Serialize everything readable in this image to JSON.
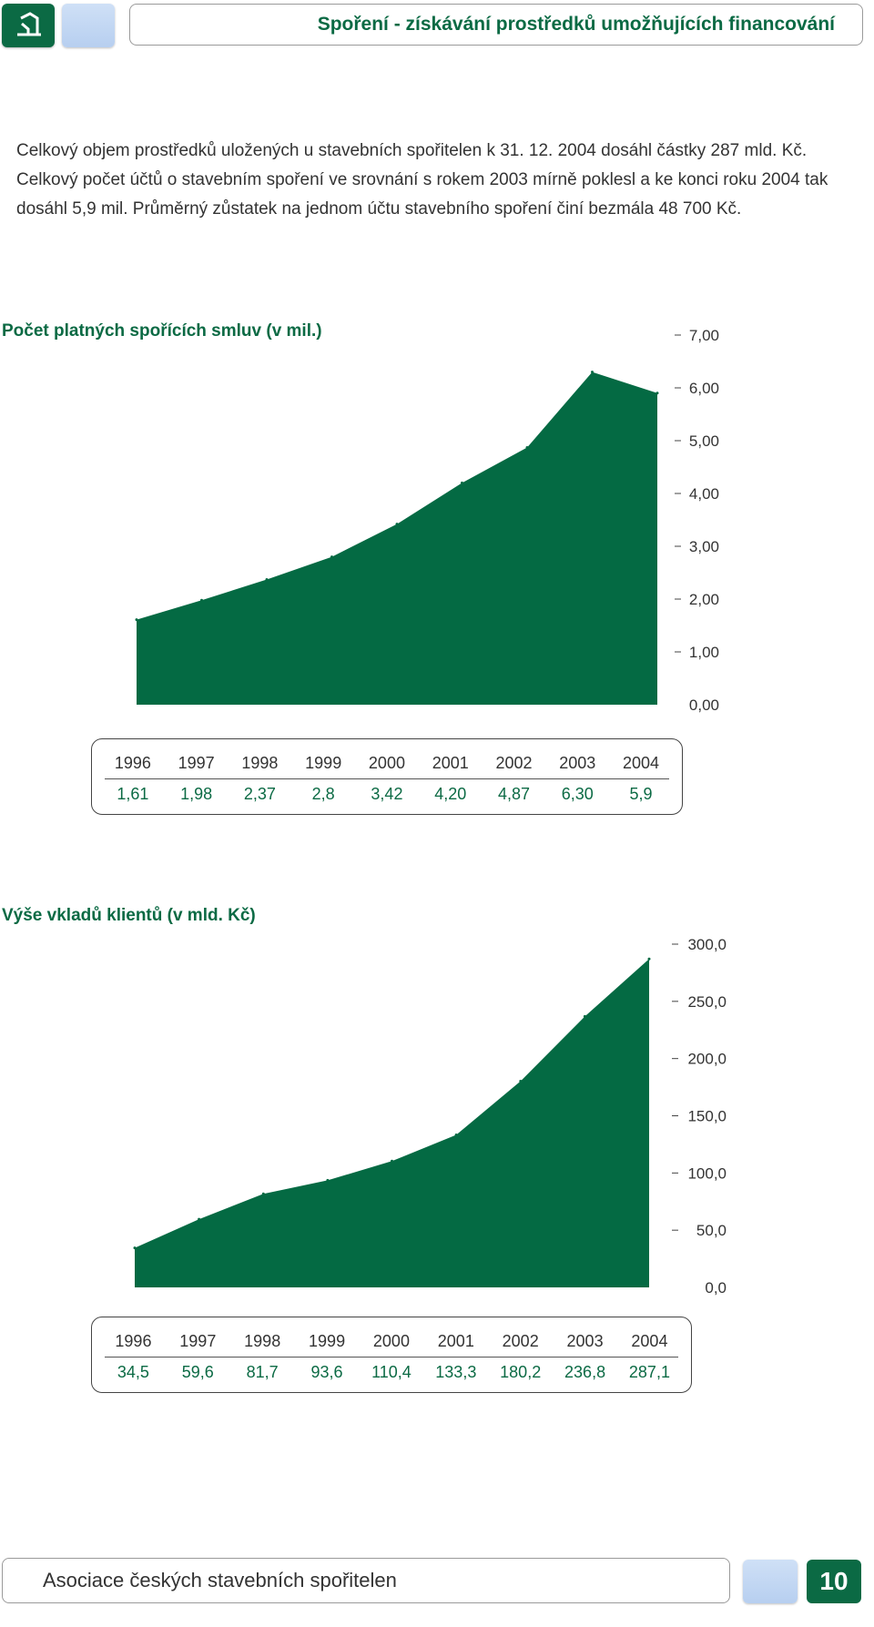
{
  "header": {
    "title": "Spoření - získávání prostředků umožňujících financování"
  },
  "intro": "Celkový objem prostředků uložených u stavebních spořitelen k 31. 12. 2004 dosáhl částky 287 mld. Kč. Celkový počet účtů o stavebním spoření ve srovnání s rokem 2003 mírně poklesl a ke konci roku 2004 tak dosáhl 5,9 mil. Průměrný zůstatek na jednom účtu stavebního spoření činí bezmála 48 700 Kč.",
  "colors": {
    "accent": "#0b6a44",
    "area": "#046a43",
    "light_square": "#c2d7f3"
  },
  "chart_data": [
    {
      "type": "area",
      "title": "Počet platných spořících smluv (v mil.)",
      "x": [
        "1996",
        "1997",
        "1998",
        "1999",
        "2000",
        "2001",
        "2002",
        "2003",
        "2004"
      ],
      "table_values": [
        "1,61",
        "1,98",
        "2,37",
        "2,8",
        "3,42",
        "4,20",
        "4,87",
        "6,30",
        "5,9"
      ],
      "values": [
        1.61,
        1.98,
        2.37,
        2.8,
        3.42,
        4.2,
        4.87,
        6.3,
        5.9
      ],
      "ylim": [
        0,
        7
      ],
      "yticks": [
        "0,00",
        "1,00",
        "2,00",
        "3,00",
        "4,00",
        "5,00",
        "6,00",
        "7,00"
      ],
      "grid": false,
      "axis_side": "right"
    },
    {
      "type": "area",
      "title": "Výše vkladů klientů (v mld. Kč)",
      "x": [
        "1996",
        "1997",
        "1998",
        "1999",
        "2000",
        "2001",
        "2002",
        "2003",
        "2004"
      ],
      "table_values": [
        "34,5",
        "59,6",
        "81,7",
        "93,6",
        "110,4",
        "133,3",
        "180,2",
        "236,8",
        "287,1"
      ],
      "values": [
        34.5,
        59.6,
        81.7,
        93.6,
        110.4,
        133.3,
        180.2,
        236.8,
        287.1
      ],
      "ylim": [
        0,
        300
      ],
      "yticks": [
        "0,0",
        "50,0",
        "100,0",
        "150,0",
        "200,0",
        "250,0",
        "300,0"
      ],
      "grid": false,
      "axis_side": "right"
    }
  ],
  "footer": {
    "organization": "Asociace českých stavebních spořitelen",
    "page_number": "10"
  }
}
